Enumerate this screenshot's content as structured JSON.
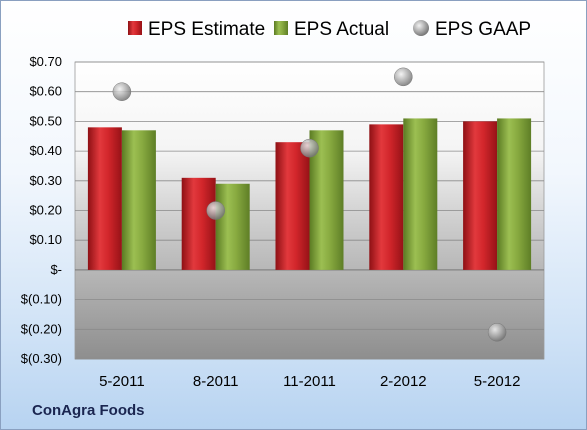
{
  "company": "ConAgra Foods",
  "chart_data": {
    "type": "bar",
    "categories": [
      "5-2011",
      "8-2011",
      "11-2011",
      "2-2012",
      "5-2012"
    ],
    "series": [
      {
        "name": "EPS Estimate",
        "kind": "bar",
        "color": "#cc2027",
        "values": [
          0.48,
          0.31,
          0.43,
          0.49,
          0.5
        ]
      },
      {
        "name": "EPS Actual",
        "kind": "bar",
        "color": "#86a83e",
        "values": [
          0.47,
          0.29,
          0.47,
          0.51,
          0.51
        ]
      },
      {
        "name": "EPS GAAP",
        "kind": "scatter",
        "color": "#a8a8a8",
        "values": [
          0.6,
          0.2,
          0.41,
          0.65,
          -0.21
        ]
      }
    ],
    "yticks": [
      "$0.70",
      "$0.60",
      "$0.50",
      "$0.40",
      "$0.30",
      "$0.20",
      "$0.10",
      "$-",
      "$(0.10)",
      "$(0.20)",
      "$(0.30)"
    ],
    "ylim": [
      -0.3,
      0.7
    ],
    "grid": true,
    "legend_position": "top"
  }
}
